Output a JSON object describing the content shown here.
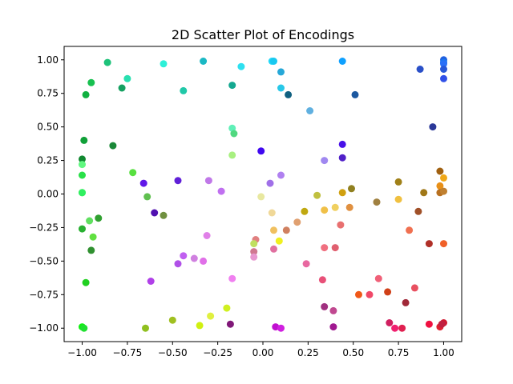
{
  "chart_data": {
    "type": "scatter",
    "title": "2D Scatter Plot of Encodings",
    "xlabel": "",
    "ylabel": "",
    "xlim": [
      -1.1,
      1.1
    ],
    "ylim": [
      -1.1,
      1.1
    ],
    "xticks": [
      -1.0,
      -0.75,
      -0.5,
      -0.25,
      0.0,
      0.25,
      0.5,
      0.75,
      1.0
    ],
    "yticks": [
      -1.0,
      -0.75,
      -0.5,
      -0.25,
      0.0,
      0.25,
      0.5,
      0.75,
      1.0
    ],
    "xtick_labels": [
      "−1.00",
      "−0.75",
      "−0.50",
      "−0.25",
      "0.00",
      "0.25",
      "0.50",
      "0.75",
      "1.00"
    ],
    "ytick_labels": [
      "−1.00",
      "−0.75",
      "−0.50",
      "−0.25",
      "0.00",
      "0.25",
      "0.50",
      "0.75",
      "1.00"
    ],
    "grid": false,
    "points": [
      {
        "x": -0.86,
        "y": 0.98,
        "color": "#1ec27a"
      },
      {
        "x": -0.55,
        "y": 0.97,
        "color": "#2ef0d8"
      },
      {
        "x": -0.33,
        "y": 0.99,
        "color": "#1ab8c4"
      },
      {
        "x": -0.12,
        "y": 0.95,
        "color": "#2ee0f0"
      },
      {
        "x": 0.05,
        "y": 0.99,
        "color": "#22d8f8"
      },
      {
        "x": 0.06,
        "y": 0.99,
        "color": "#18c8f0"
      },
      {
        "x": 0.44,
        "y": 0.99,
        "color": "#0ea0ff"
      },
      {
        "x": 0.87,
        "y": 0.93,
        "color": "#2a50c8"
      },
      {
        "x": 1.0,
        "y": 1.0,
        "color": "#2060e0"
      },
      {
        "x": 1.0,
        "y": 0.98,
        "color": "#1878f0"
      },
      {
        "x": 1.0,
        "y": 0.97,
        "color": "#2a70f8"
      },
      {
        "x": 1.0,
        "y": 0.93,
        "color": "#2858d8"
      },
      {
        "x": 1.0,
        "y": 0.86,
        "color": "#3050e8"
      },
      {
        "x": 0.1,
        "y": 0.91,
        "color": "#26a8d8"
      },
      {
        "x": -0.95,
        "y": 0.83,
        "color": "#18c050"
      },
      {
        "x": -0.75,
        "y": 0.86,
        "color": "#28e0b0"
      },
      {
        "x": -0.78,
        "y": 0.79,
        "color": "#14a060"
      },
      {
        "x": -0.98,
        "y": 0.74,
        "color": "#10b040"
      },
      {
        "x": -0.44,
        "y": 0.77,
        "color": "#20c8a8"
      },
      {
        "x": -0.17,
        "y": 0.81,
        "color": "#14a890"
      },
      {
        "x": 0.1,
        "y": 0.79,
        "color": "#28c8e8"
      },
      {
        "x": 0.14,
        "y": 0.74,
        "color": "#106080"
      },
      {
        "x": 0.51,
        "y": 0.74,
        "color": "#1c58a0"
      },
      {
        "x": 0.26,
        "y": 0.62,
        "color": "#60b0e0"
      },
      {
        "x": 0.94,
        "y": 0.5,
        "color": "#2a3898"
      },
      {
        "x": -0.17,
        "y": 0.49,
        "color": "#60f0b8"
      },
      {
        "x": -0.16,
        "y": 0.45,
        "color": "#50d880"
      },
      {
        "x": -0.99,
        "y": 0.4,
        "color": "#10a038"
      },
      {
        "x": -0.83,
        "y": 0.36,
        "color": "#1a8838"
      },
      {
        "x": 0.44,
        "y": 0.37,
        "color": "#4810e8"
      },
      {
        "x": -0.01,
        "y": 0.32,
        "color": "#4008f0"
      },
      {
        "x": -0.17,
        "y": 0.29,
        "color": "#a8f080"
      },
      {
        "x": 0.44,
        "y": 0.27,
        "color": "#5020c8"
      },
      {
        "x": 0.34,
        "y": 0.25,
        "color": "#a088f0"
      },
      {
        "x": -1.0,
        "y": 0.26,
        "color": "#108830"
      },
      {
        "x": -1.0,
        "y": 0.22,
        "color": "#60f880"
      },
      {
        "x": -0.72,
        "y": 0.16,
        "color": "#58e040"
      },
      {
        "x": 0.1,
        "y": 0.14,
        "color": "#b080f0"
      },
      {
        "x": -1.0,
        "y": 0.14,
        "color": "#28e048"
      },
      {
        "x": 0.98,
        "y": 0.17,
        "color": "#a06010"
      },
      {
        "x": 1.0,
        "y": 0.12,
        "color": "#f0a818"
      },
      {
        "x": -0.47,
        "y": 0.1,
        "color": "#6020d8"
      },
      {
        "x": -0.3,
        "y": 0.1,
        "color": "#c078e8"
      },
      {
        "x": -0.66,
        "y": 0.08,
        "color": "#6018e8"
      },
      {
        "x": 0.04,
        "y": 0.08,
        "color": "#a070e8"
      },
      {
        "x": 0.75,
        "y": 0.09,
        "color": "#a08018"
      },
      {
        "x": 0.98,
        "y": 0.06,
        "color": "#e89018"
      },
      {
        "x": 0.49,
        "y": 0.04,
        "color": "#908020"
      },
      {
        "x": -0.23,
        "y": 0.02,
        "color": "#c070f0"
      },
      {
        "x": -1.0,
        "y": 0.01,
        "color": "#20e040"
      },
      {
        "x": -1.0,
        "y": 0.01,
        "color": "#30f060"
      },
      {
        "x": 0.44,
        "y": 0.01,
        "color": "#d0a010"
      },
      {
        "x": 0.89,
        "y": 0.01,
        "color": "#a07818"
      },
      {
        "x": 0.98,
        "y": 0.01,
        "color": "#b87020"
      },
      {
        "x": 1.0,
        "y": 0.02,
        "color": "#c08030"
      },
      {
        "x": 0.3,
        "y": -0.01,
        "color": "#c0c040"
      },
      {
        "x": -0.01,
        "y": -0.02,
        "color": "#e8e8a0"
      },
      {
        "x": -0.64,
        "y": -0.02,
        "color": "#60c050"
      },
      {
        "x": 0.75,
        "y": -0.04,
        "color": "#f0c040"
      },
      {
        "x": 0.63,
        "y": -0.06,
        "color": "#a08040"
      },
      {
        "x": 0.48,
        "y": -0.1,
        "color": "#e09040"
      },
      {
        "x": 0.4,
        "y": -0.1,
        "color": "#f0d060"
      },
      {
        "x": 0.34,
        "y": -0.12,
        "color": "#f0c048"
      },
      {
        "x": 0.86,
        "y": -0.13,
        "color": "#a05028"
      },
      {
        "x": 0.05,
        "y": -0.14,
        "color": "#f0d898"
      },
      {
        "x": -0.6,
        "y": -0.14,
        "color": "#5010b0"
      },
      {
        "x": -0.55,
        "y": -0.16,
        "color": "#709040"
      },
      {
        "x": -0.91,
        "y": -0.18,
        "color": "#30a030"
      },
      {
        "x": 0.23,
        "y": -0.13,
        "color": "#c0a810"
      },
      {
        "x": -0.96,
        "y": -0.2,
        "color": "#60e060"
      },
      {
        "x": 0.19,
        "y": -0.21,
        "color": "#e0a070"
      },
      {
        "x": 0.43,
        "y": -0.23,
        "color": "#e87070"
      },
      {
        "x": -1.0,
        "y": -0.26,
        "color": "#28b030"
      },
      {
        "x": 0.06,
        "y": -0.27,
        "color": "#f0c060"
      },
      {
        "x": 0.13,
        "y": -0.27,
        "color": "#d08060"
      },
      {
        "x": 0.81,
        "y": -0.27,
        "color": "#f07050"
      },
      {
        "x": -0.31,
        "y": -0.31,
        "color": "#e080e8"
      },
      {
        "x": -0.94,
        "y": -0.32,
        "color": "#60e040"
      },
      {
        "x": -0.04,
        "y": -0.34,
        "color": "#e08080"
      },
      {
        "x": 0.09,
        "y": -0.35,
        "color": "#f0f020"
      },
      {
        "x": 0.92,
        "y": -0.37,
        "color": "#b03028"
      },
      {
        "x": 1.0,
        "y": -0.37,
        "color": "#f06028"
      },
      {
        "x": 0.34,
        "y": -0.4,
        "color": "#f07080"
      },
      {
        "x": 0.4,
        "y": -0.4,
        "color": "#e06070"
      },
      {
        "x": -0.05,
        "y": -0.37,
        "color": "#c0e060"
      },
      {
        "x": 0.06,
        "y": -0.41,
        "color": "#e070a0"
      },
      {
        "x": -0.95,
        "y": -0.42,
        "color": "#309030"
      },
      {
        "x": -0.05,
        "y": -0.43,
        "color": "#d07890"
      },
      {
        "x": -0.44,
        "y": -0.46,
        "color": "#c060f0"
      },
      {
        "x": -0.38,
        "y": -0.48,
        "color": "#d080e0"
      },
      {
        "x": -0.33,
        "y": -0.5,
        "color": "#e070e8"
      },
      {
        "x": -0.05,
        "y": -0.47,
        "color": "#e898d0"
      },
      {
        "x": -0.47,
        "y": -0.52,
        "color": "#b050e8"
      },
      {
        "x": 0.24,
        "y": -0.52,
        "color": "#e868a0"
      },
      {
        "x": 0.33,
        "y": -0.64,
        "color": "#e85078"
      },
      {
        "x": -0.17,
        "y": -0.63,
        "color": "#f080f0"
      },
      {
        "x": -0.62,
        "y": -0.65,
        "color": "#b040e8"
      },
      {
        "x": -0.98,
        "y": -0.66,
        "color": "#20d020"
      },
      {
        "x": 0.64,
        "y": -0.63,
        "color": "#f06078"
      },
      {
        "x": 0.84,
        "y": -0.7,
        "color": "#e85060"
      },
      {
        "x": 0.53,
        "y": -0.75,
        "color": "#f05818"
      },
      {
        "x": 0.59,
        "y": -0.75,
        "color": "#f04868"
      },
      {
        "x": 0.69,
        "y": -0.73,
        "color": "#d04018"
      },
      {
        "x": 0.79,
        "y": -0.81,
        "color": "#a02838"
      },
      {
        "x": 0.34,
        "y": -0.84,
        "color": "#a03080"
      },
      {
        "x": 0.39,
        "y": -0.87,
        "color": "#c04890"
      },
      {
        "x": -0.2,
        "y": -0.85,
        "color": "#d0f020"
      },
      {
        "x": -0.29,
        "y": -0.91,
        "color": "#e0f040"
      },
      {
        "x": -0.5,
        "y": -0.94,
        "color": "#a0c020"
      },
      {
        "x": -0.35,
        "y": -0.98,
        "color": "#d0f010"
      },
      {
        "x": -0.18,
        "y": -0.97,
        "color": "#801878"
      },
      {
        "x": -1.0,
        "y": -0.99,
        "color": "#10f010"
      },
      {
        "x": -0.99,
        "y": -1.0,
        "color": "#20e030"
      },
      {
        "x": -0.65,
        "y": -1.0,
        "color": "#90c020"
      },
      {
        "x": 0.07,
        "y": -0.99,
        "color": "#c010d0"
      },
      {
        "x": 0.1,
        "y": -1.0,
        "color": "#d020e0"
      },
      {
        "x": 0.39,
        "y": -0.99,
        "color": "#a01890"
      },
      {
        "x": 0.7,
        "y": -0.96,
        "color": "#d02060"
      },
      {
        "x": 0.73,
        "y": -1.0,
        "color": "#f02070"
      },
      {
        "x": 0.77,
        "y": -1.0,
        "color": "#e02050"
      },
      {
        "x": 0.92,
        "y": -0.97,
        "color": "#f01040"
      },
      {
        "x": 0.98,
        "y": -0.99,
        "color": "#e02030"
      },
      {
        "x": 1.0,
        "y": -0.96,
        "color": "#d01830"
      },
      {
        "x": 0.99,
        "y": -0.97,
        "color": "#c02040"
      }
    ]
  }
}
